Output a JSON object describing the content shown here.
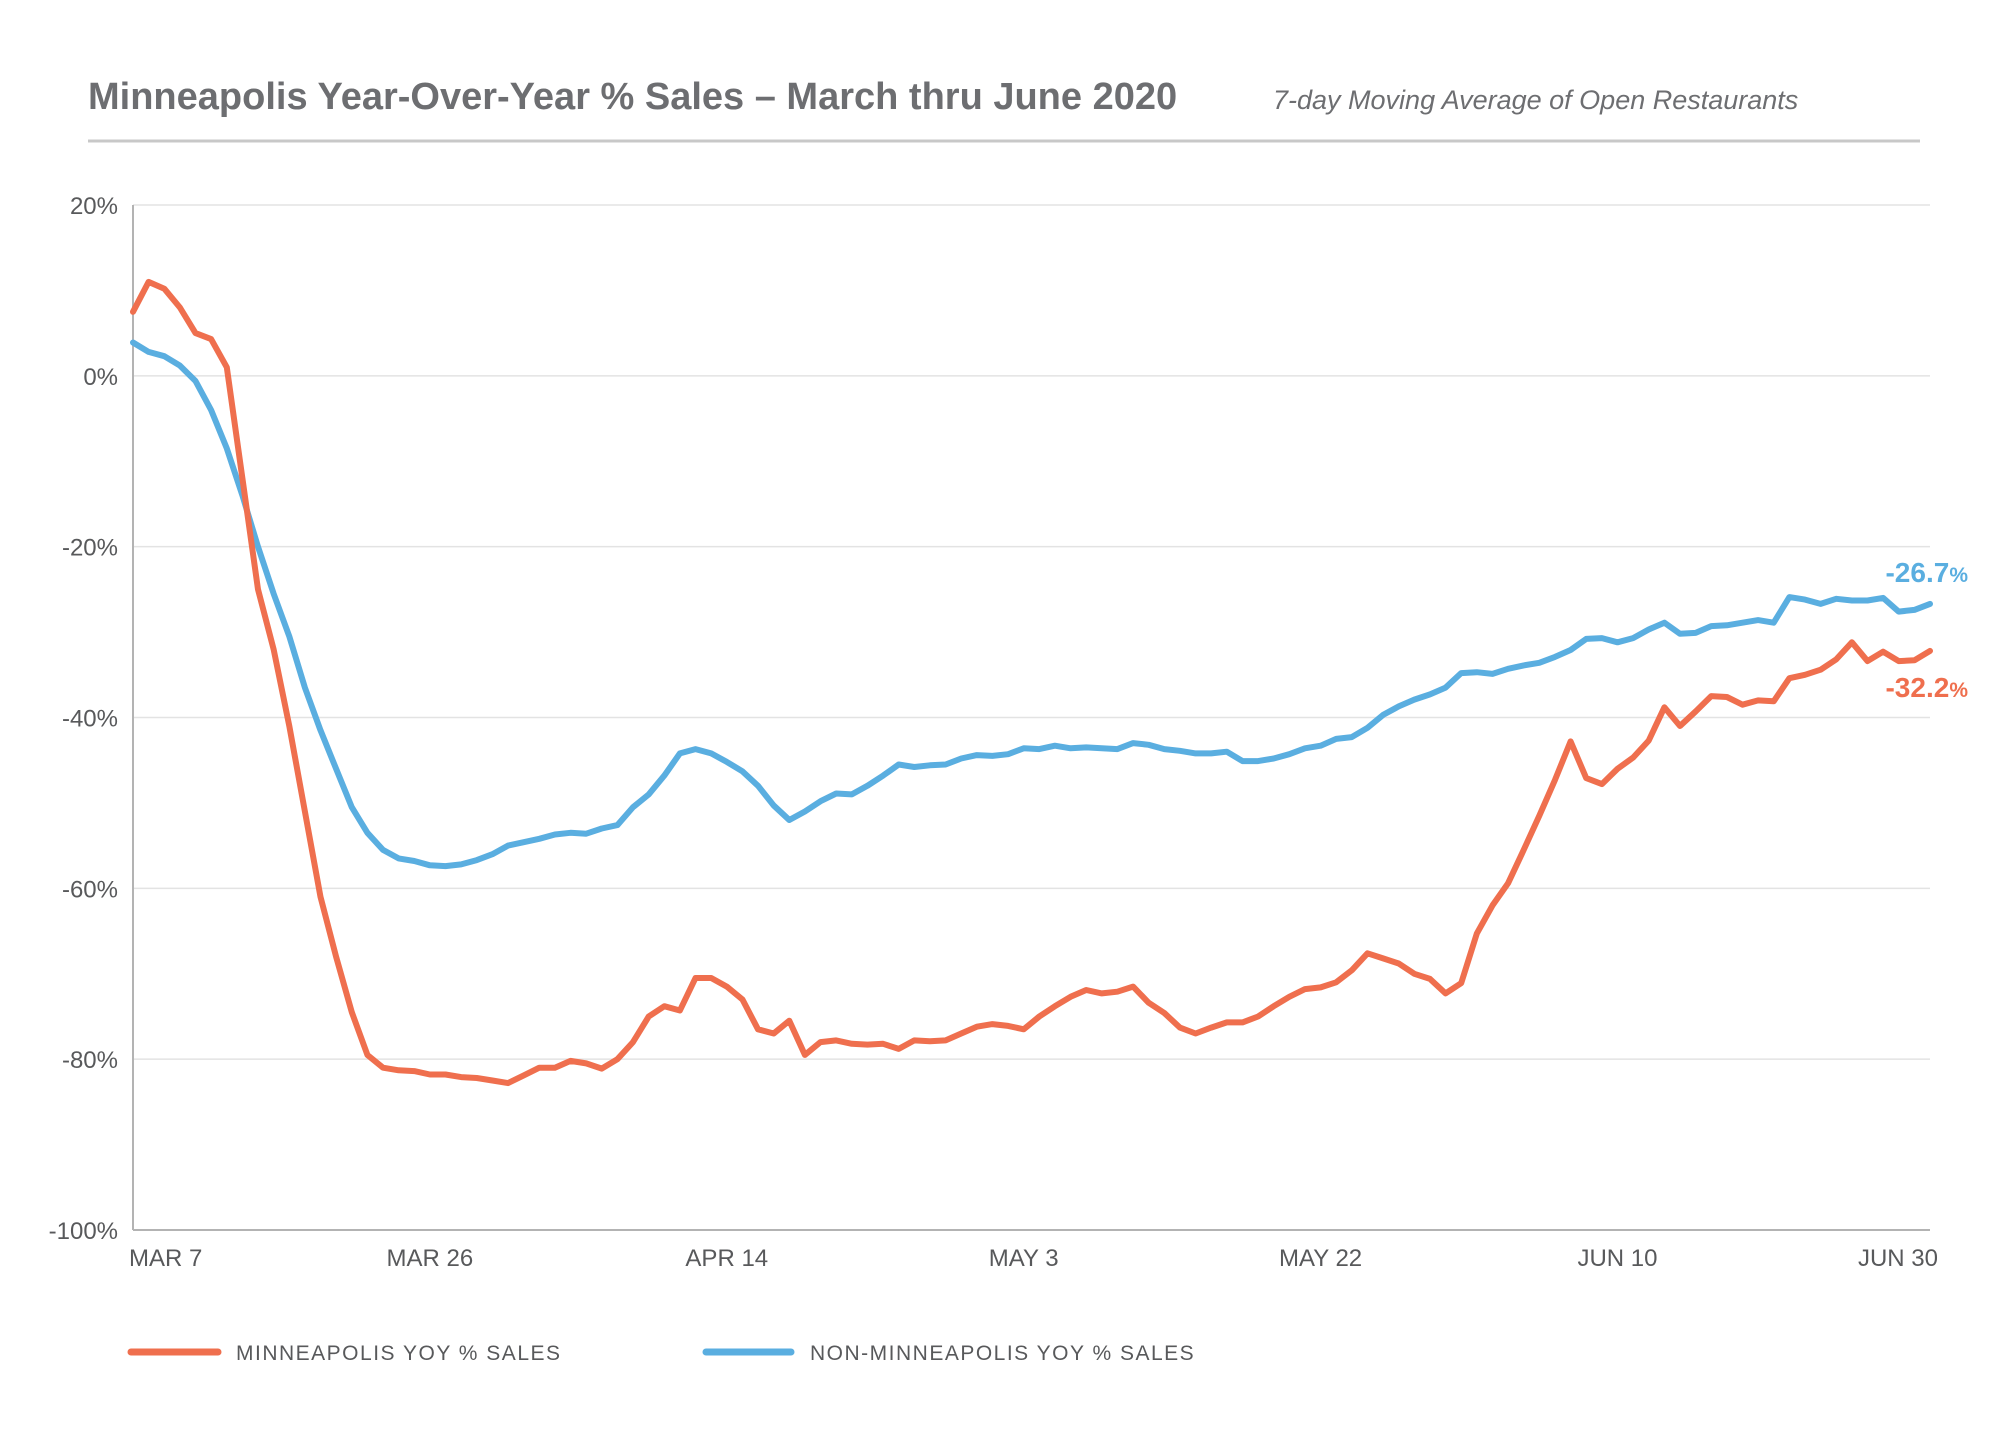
{
  "header": {
    "title": "Minneapolis Year-Over-Year % Sales – March thru June 2020",
    "subtitle": "7-day Moving Average of Open Restaurants"
  },
  "colors": {
    "minneapolis": "#ef6f4e",
    "non_minneapolis": "#5aaee0",
    "grid": "#e3e3e3",
    "axis": "#b3b3b3",
    "text": "#58595b"
  },
  "chart_data": {
    "type": "line",
    "title": "Minneapolis Year-Over-Year % Sales – March thru June 2020",
    "subtitle": "7-day Moving Average of Open Restaurants",
    "x_start": "2020-03-07",
    "x_end": "2020-06-30",
    "ylim": [
      -100,
      20
    ],
    "yticks": [
      20,
      0,
      -20,
      -40,
      -60,
      -80,
      -100
    ],
    "ytick_labels": [
      "20%",
      "0%",
      "-20%",
      "-40%",
      "-60%",
      "-80%",
      "-100%"
    ],
    "xticks": [
      "2020-03-07",
      "2020-03-26",
      "2020-04-14",
      "2020-05-03",
      "2020-05-22",
      "2020-06-10",
      "2020-06-30"
    ],
    "xtick_labels": [
      "MAR 7",
      "MAR 26",
      "APR 14",
      "MAY 3",
      "MAY 22",
      "JUN 10",
      "JUN 30"
    ],
    "grid": true,
    "legend_position": "bottom",
    "series": [
      {
        "name": "MINNEAPOLIS YOY % SALES",
        "key": "minneapolis",
        "end_label": "-32.2",
        "end_label_suffix": "%",
        "points": [
          [
            "2020-03-07",
            7.5
          ],
          [
            "2020-03-08",
            11.0
          ],
          [
            "2020-03-09",
            10.2
          ],
          [
            "2020-03-10",
            8.0
          ],
          [
            "2020-03-11",
            5.0
          ],
          [
            "2020-03-12",
            4.3
          ],
          [
            "2020-03-13",
            1.0
          ],
          [
            "2020-03-14",
            -12.0
          ],
          [
            "2020-03-15",
            -25.0
          ],
          [
            "2020-03-16",
            -32.0
          ],
          [
            "2020-03-17",
            -41.0
          ],
          [
            "2020-03-18",
            -51.0
          ],
          [
            "2020-03-19",
            -61.0
          ],
          [
            "2020-03-20",
            -68.0
          ],
          [
            "2020-03-21",
            -74.5
          ],
          [
            "2020-03-22",
            -79.5
          ],
          [
            "2020-03-23",
            -81.0
          ],
          [
            "2020-03-24",
            -81.3
          ],
          [
            "2020-03-25",
            -81.4
          ],
          [
            "2020-03-26",
            -81.8
          ],
          [
            "2020-03-27",
            -81.8
          ],
          [
            "2020-03-28",
            -82.1
          ],
          [
            "2020-03-29",
            -82.2
          ],
          [
            "2020-03-30",
            -82.5
          ],
          [
            "2020-03-31",
            -82.8
          ],
          [
            "2020-04-01",
            -81.9
          ],
          [
            "2020-04-02",
            -81.0
          ],
          [
            "2020-04-03",
            -81.0
          ],
          [
            "2020-04-04",
            -80.2
          ],
          [
            "2020-04-05",
            -80.5
          ],
          [
            "2020-04-06",
            -81.1
          ],
          [
            "2020-04-07",
            -80.0
          ],
          [
            "2020-04-08",
            -78.0
          ],
          [
            "2020-04-09",
            -75.0
          ],
          [
            "2020-04-10",
            -73.8
          ],
          [
            "2020-04-11",
            -74.3
          ],
          [
            "2020-04-12",
            -70.5
          ],
          [
            "2020-04-13",
            -70.5
          ],
          [
            "2020-04-14",
            -71.5
          ],
          [
            "2020-04-15",
            -73.0
          ],
          [
            "2020-04-16",
            -76.5
          ],
          [
            "2020-04-17",
            -77.0
          ],
          [
            "2020-04-18",
            -75.5
          ],
          [
            "2020-04-19",
            -79.5
          ],
          [
            "2020-04-20",
            -78.0
          ],
          [
            "2020-04-21",
            -77.8
          ],
          [
            "2020-04-22",
            -78.2
          ],
          [
            "2020-04-23",
            -78.3
          ],
          [
            "2020-04-24",
            -78.2
          ],
          [
            "2020-04-25",
            -78.8
          ],
          [
            "2020-04-26",
            -77.8
          ],
          [
            "2020-04-27",
            -77.9
          ],
          [
            "2020-04-28",
            -77.8
          ],
          [
            "2020-04-29",
            -77.0
          ],
          [
            "2020-04-30",
            -76.2
          ],
          [
            "2020-05-01",
            -75.9
          ],
          [
            "2020-05-02",
            -76.1
          ],
          [
            "2020-05-03",
            -76.5
          ],
          [
            "2020-05-04",
            -75.0
          ],
          [
            "2020-05-05",
            -73.8
          ],
          [
            "2020-05-06",
            -72.7
          ],
          [
            "2020-05-07",
            -71.9
          ],
          [
            "2020-05-08",
            -72.3
          ],
          [
            "2020-05-09",
            -72.1
          ],
          [
            "2020-05-10",
            -71.5
          ],
          [
            "2020-05-11",
            -73.4
          ],
          [
            "2020-05-12",
            -74.6
          ],
          [
            "2020-05-13",
            -76.3
          ],
          [
            "2020-05-14",
            -77.0
          ],
          [
            "2020-05-15",
            -76.3
          ],
          [
            "2020-05-16",
            -75.7
          ],
          [
            "2020-05-17",
            -75.7
          ],
          [
            "2020-05-18",
            -75.0
          ],
          [
            "2020-05-19",
            -73.8
          ],
          [
            "2020-05-20",
            -72.7
          ],
          [
            "2020-05-21",
            -71.8
          ],
          [
            "2020-05-22",
            -71.6
          ],
          [
            "2020-05-23",
            -71.0
          ],
          [
            "2020-05-24",
            -69.6
          ],
          [
            "2020-05-25",
            -67.6
          ],
          [
            "2020-05-26",
            -68.2
          ],
          [
            "2020-05-27",
            -68.8
          ],
          [
            "2020-05-28",
            -70.0
          ],
          [
            "2020-05-29",
            -70.6
          ],
          [
            "2020-05-30",
            -72.3
          ],
          [
            "2020-05-31",
            -71.1
          ],
          [
            "2020-06-01",
            -65.3
          ],
          [
            "2020-06-02",
            -62.0
          ],
          [
            "2020-06-03",
            -59.4
          ],
          [
            "2020-06-04",
            -55.5
          ],
          [
            "2020-06-05",
            -51.5
          ],
          [
            "2020-06-06",
            -47.3
          ],
          [
            "2020-06-07",
            -42.8
          ],
          [
            "2020-06-08",
            -47.1
          ],
          [
            "2020-06-09",
            -47.8
          ],
          [
            "2020-06-10",
            -46.0
          ],
          [
            "2020-06-11",
            -44.7
          ],
          [
            "2020-06-12",
            -42.7
          ],
          [
            "2020-06-13",
            -38.8
          ],
          [
            "2020-06-14",
            -41.0
          ],
          [
            "2020-06-15",
            -39.3
          ],
          [
            "2020-06-16",
            -37.5
          ],
          [
            "2020-06-17",
            -37.6
          ],
          [
            "2020-06-18",
            -38.5
          ],
          [
            "2020-06-19",
            -38.0
          ],
          [
            "2020-06-20",
            -38.1
          ],
          [
            "2020-06-21",
            -35.4
          ],
          [
            "2020-06-22",
            -35.0
          ],
          [
            "2020-06-23",
            -34.4
          ],
          [
            "2020-06-24",
            -33.2
          ],
          [
            "2020-06-25",
            -31.2
          ],
          [
            "2020-06-26",
            -33.4
          ],
          [
            "2020-06-27",
            -32.3
          ],
          [
            "2020-06-28",
            -33.4
          ],
          [
            "2020-06-29",
            -33.3
          ],
          [
            "2020-06-30",
            -32.2
          ]
        ]
      },
      {
        "name": "NON-MINNEAPOLIS YOY % SALES",
        "key": "non_minneapolis",
        "end_label": "-26.7",
        "end_label_suffix": "%",
        "points": [
          [
            "2020-03-07",
            3.9
          ],
          [
            "2020-03-08",
            2.8
          ],
          [
            "2020-03-09",
            2.3
          ],
          [
            "2020-03-10",
            1.2
          ],
          [
            "2020-03-11",
            -0.6
          ],
          [
            "2020-03-12",
            -4.0
          ],
          [
            "2020-03-13",
            -8.5
          ],
          [
            "2020-03-14",
            -14.0
          ],
          [
            "2020-03-15",
            -20.0
          ],
          [
            "2020-03-16",
            -25.5
          ],
          [
            "2020-03-17",
            -30.5
          ],
          [
            "2020-03-18",
            -36.5
          ],
          [
            "2020-03-19",
            -41.5
          ],
          [
            "2020-03-20",
            -46.0
          ],
          [
            "2020-03-21",
            -50.5
          ],
          [
            "2020-03-22",
            -53.5
          ],
          [
            "2020-03-23",
            -55.5
          ],
          [
            "2020-03-24",
            -56.5
          ],
          [
            "2020-03-25",
            -56.8
          ],
          [
            "2020-03-26",
            -57.3
          ],
          [
            "2020-03-27",
            -57.4
          ],
          [
            "2020-03-28",
            -57.2
          ],
          [
            "2020-03-29",
            -56.7
          ],
          [
            "2020-03-30",
            -56.0
          ],
          [
            "2020-03-31",
            -55.0
          ],
          [
            "2020-04-01",
            -54.6
          ],
          [
            "2020-04-02",
            -54.2
          ],
          [
            "2020-04-03",
            -53.7
          ],
          [
            "2020-04-04",
            -53.5
          ],
          [
            "2020-04-05",
            -53.6
          ],
          [
            "2020-04-06",
            -53.0
          ],
          [
            "2020-04-07",
            -52.6
          ],
          [
            "2020-04-08",
            -50.5
          ],
          [
            "2020-04-09",
            -49.0
          ],
          [
            "2020-04-10",
            -46.8
          ],
          [
            "2020-04-11",
            -44.2
          ],
          [
            "2020-04-12",
            -43.7
          ],
          [
            "2020-04-13",
            -44.2
          ],
          [
            "2020-04-14",
            -45.2
          ],
          [
            "2020-04-15",
            -46.3
          ],
          [
            "2020-04-16",
            -48.0
          ],
          [
            "2020-04-17",
            -50.3
          ],
          [
            "2020-04-18",
            -52.0
          ],
          [
            "2020-04-19",
            -51.0
          ],
          [
            "2020-04-20",
            -49.8
          ],
          [
            "2020-04-21",
            -48.9
          ],
          [
            "2020-04-22",
            -49.0
          ],
          [
            "2020-04-23",
            -48.0
          ],
          [
            "2020-04-24",
            -46.8
          ],
          [
            "2020-04-25",
            -45.5
          ],
          [
            "2020-04-26",
            -45.8
          ],
          [
            "2020-04-27",
            -45.6
          ],
          [
            "2020-04-28",
            -45.5
          ],
          [
            "2020-04-29",
            -44.8
          ],
          [
            "2020-04-30",
            -44.4
          ],
          [
            "2020-05-01",
            -44.5
          ],
          [
            "2020-05-02",
            -44.3
          ],
          [
            "2020-05-03",
            -43.6
          ],
          [
            "2020-05-04",
            -43.7
          ],
          [
            "2020-05-05",
            -43.3
          ],
          [
            "2020-05-06",
            -43.6
          ],
          [
            "2020-05-07",
            -43.5
          ],
          [
            "2020-05-08",
            -43.6
          ],
          [
            "2020-05-09",
            -43.7
          ],
          [
            "2020-05-10",
            -43.0
          ],
          [
            "2020-05-11",
            -43.2
          ],
          [
            "2020-05-12",
            -43.7
          ],
          [
            "2020-05-13",
            -43.9
          ],
          [
            "2020-05-14",
            -44.2
          ],
          [
            "2020-05-15",
            -44.2
          ],
          [
            "2020-05-16",
            -44.0
          ],
          [
            "2020-05-17",
            -45.1
          ],
          [
            "2020-05-18",
            -45.1
          ],
          [
            "2020-05-19",
            -44.8
          ],
          [
            "2020-05-20",
            -44.3
          ],
          [
            "2020-05-21",
            -43.6
          ],
          [
            "2020-05-22",
            -43.3
          ],
          [
            "2020-05-23",
            -42.5
          ],
          [
            "2020-05-24",
            -42.3
          ],
          [
            "2020-05-25",
            -41.2
          ],
          [
            "2020-05-26",
            -39.7
          ],
          [
            "2020-05-27",
            -38.7
          ],
          [
            "2020-05-28",
            -37.9
          ],
          [
            "2020-05-29",
            -37.3
          ],
          [
            "2020-05-30",
            -36.5
          ],
          [
            "2020-05-31",
            -34.8
          ],
          [
            "2020-06-01",
            -34.7
          ],
          [
            "2020-06-02",
            -34.9
          ],
          [
            "2020-06-03",
            -34.3
          ],
          [
            "2020-06-04",
            -33.9
          ],
          [
            "2020-06-05",
            -33.6
          ],
          [
            "2020-06-06",
            -32.9
          ],
          [
            "2020-06-07",
            -32.1
          ],
          [
            "2020-06-08",
            -30.8
          ],
          [
            "2020-06-09",
            -30.7
          ],
          [
            "2020-06-10",
            -31.2
          ],
          [
            "2020-06-11",
            -30.7
          ],
          [
            "2020-06-12",
            -29.7
          ],
          [
            "2020-06-13",
            -28.9
          ],
          [
            "2020-06-14",
            -30.2
          ],
          [
            "2020-06-15",
            -30.1
          ],
          [
            "2020-06-16",
            -29.3
          ],
          [
            "2020-06-17",
            -29.2
          ],
          [
            "2020-06-18",
            -28.9
          ],
          [
            "2020-06-19",
            -28.6
          ],
          [
            "2020-06-20",
            -28.9
          ],
          [
            "2020-06-21",
            -25.9
          ],
          [
            "2020-06-22",
            -26.2
          ],
          [
            "2020-06-23",
            -26.7
          ],
          [
            "2020-06-24",
            -26.1
          ],
          [
            "2020-06-25",
            -26.3
          ],
          [
            "2020-06-26",
            -26.3
          ],
          [
            "2020-06-27",
            -26.0
          ],
          [
            "2020-06-28",
            -27.6
          ],
          [
            "2020-06-29",
            -27.4
          ],
          [
            "2020-06-30",
            -26.7
          ]
        ]
      }
    ]
  }
}
